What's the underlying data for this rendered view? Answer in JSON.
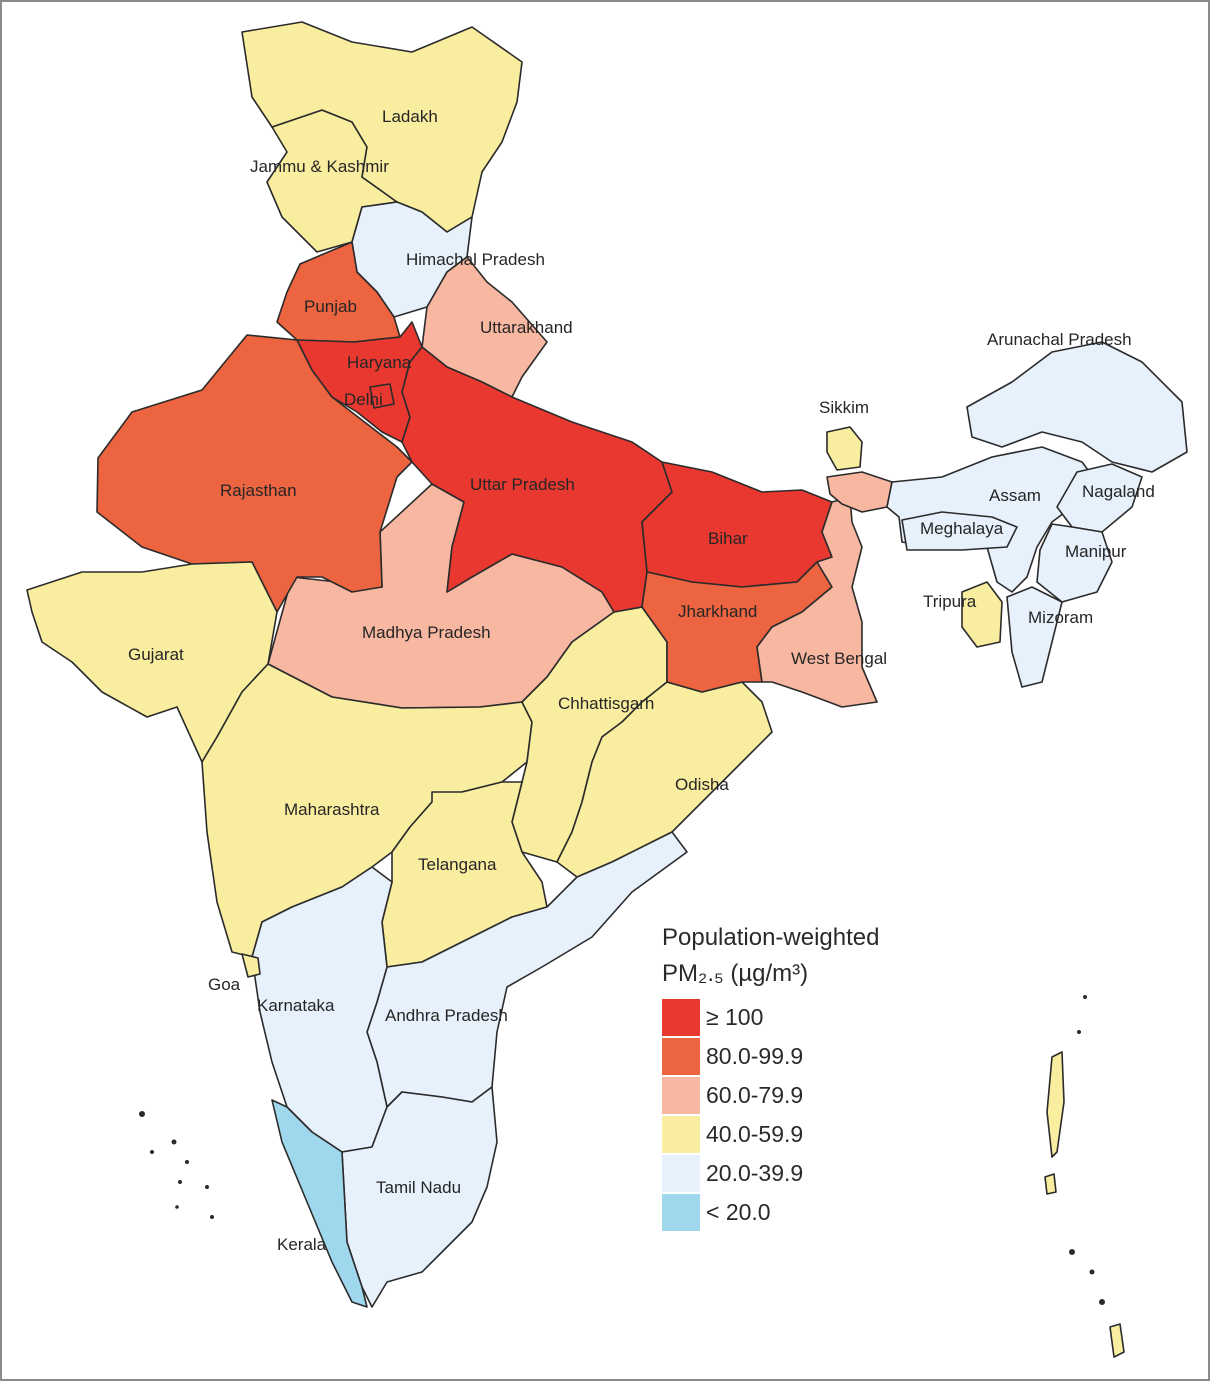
{
  "legend": {
    "title": "Population-weighted",
    "subtitle": "PM₂.₅ (µg/m³)",
    "classes": [
      {
        "label": "≥ 100",
        "color": "#e8382f"
      },
      {
        "label": "80.0-99.9",
        "color": "#ec6440"
      },
      {
        "label": "60.0-79.9",
        "color": "#f7b7a1"
      },
      {
        "label": "40.0-59.9",
        "color": "#f9eda0"
      },
      {
        "label": "20.0-39.9",
        "color": "#e6f1fb"
      },
      {
        "label": "< 20.0",
        "color": "#9fd8ec"
      }
    ]
  },
  "states": [
    {
      "label": "Ladakh",
      "class": "40.0-59.9"
    },
    {
      "label": "Jammu & Kashmir",
      "class": "40.0-59.9"
    },
    {
      "label": "Himachal Pradesh",
      "class": "20.0-39.9"
    },
    {
      "label": "Punjab",
      "class": "80.0-99.9"
    },
    {
      "label": "Uttarakhand",
      "class": "60.0-79.9"
    },
    {
      "label": "Haryana",
      "class": "≥ 100"
    },
    {
      "label": "Delhi",
      "class": "≥ 100"
    },
    {
      "label": "Rajasthan",
      "class": "80.0-99.9"
    },
    {
      "label": "Uttar Pradesh",
      "class": "≥ 100"
    },
    {
      "label": "Bihar",
      "class": "≥ 100"
    },
    {
      "label": "Sikkim",
      "class": "40.0-59.9"
    },
    {
      "label": "Arunachal Pradesh",
      "class": "20.0-39.9"
    },
    {
      "label": "Assam",
      "class": "20.0-39.9"
    },
    {
      "label": "Nagaland",
      "class": "20.0-39.9"
    },
    {
      "label": "Meghalaya",
      "class": "20.0-39.9"
    },
    {
      "label": "Manipur",
      "class": "20.0-39.9"
    },
    {
      "label": "Tripura",
      "class": "40.0-59.9"
    },
    {
      "label": "Mizoram",
      "class": "20.0-39.9"
    },
    {
      "label": "Jharkhand",
      "class": "80.0-99.9"
    },
    {
      "label": "West Bengal",
      "class": "60.0-79.9"
    },
    {
      "label": "Gujarat",
      "class": "40.0-59.9"
    },
    {
      "label": "Madhya Pradesh",
      "class": "60.0-79.9"
    },
    {
      "label": "Chhattisgarh",
      "class": "40.0-59.9"
    },
    {
      "label": "Odisha",
      "class": "40.0-59.9"
    },
    {
      "label": "Maharashtra",
      "class": "40.0-59.9"
    },
    {
      "label": "Telangana",
      "class": "40.0-59.9"
    },
    {
      "label": "Goa",
      "class": "40.0-59.9"
    },
    {
      "label": "Karnataka",
      "class": "20.0-39.9"
    },
    {
      "label": "Andhra Pradesh",
      "class": "20.0-39.9"
    },
    {
      "label": "Tamil Nadu",
      "class": "20.0-39.9"
    },
    {
      "label": "Kerala",
      "class": "< 20.0"
    }
  ]
}
